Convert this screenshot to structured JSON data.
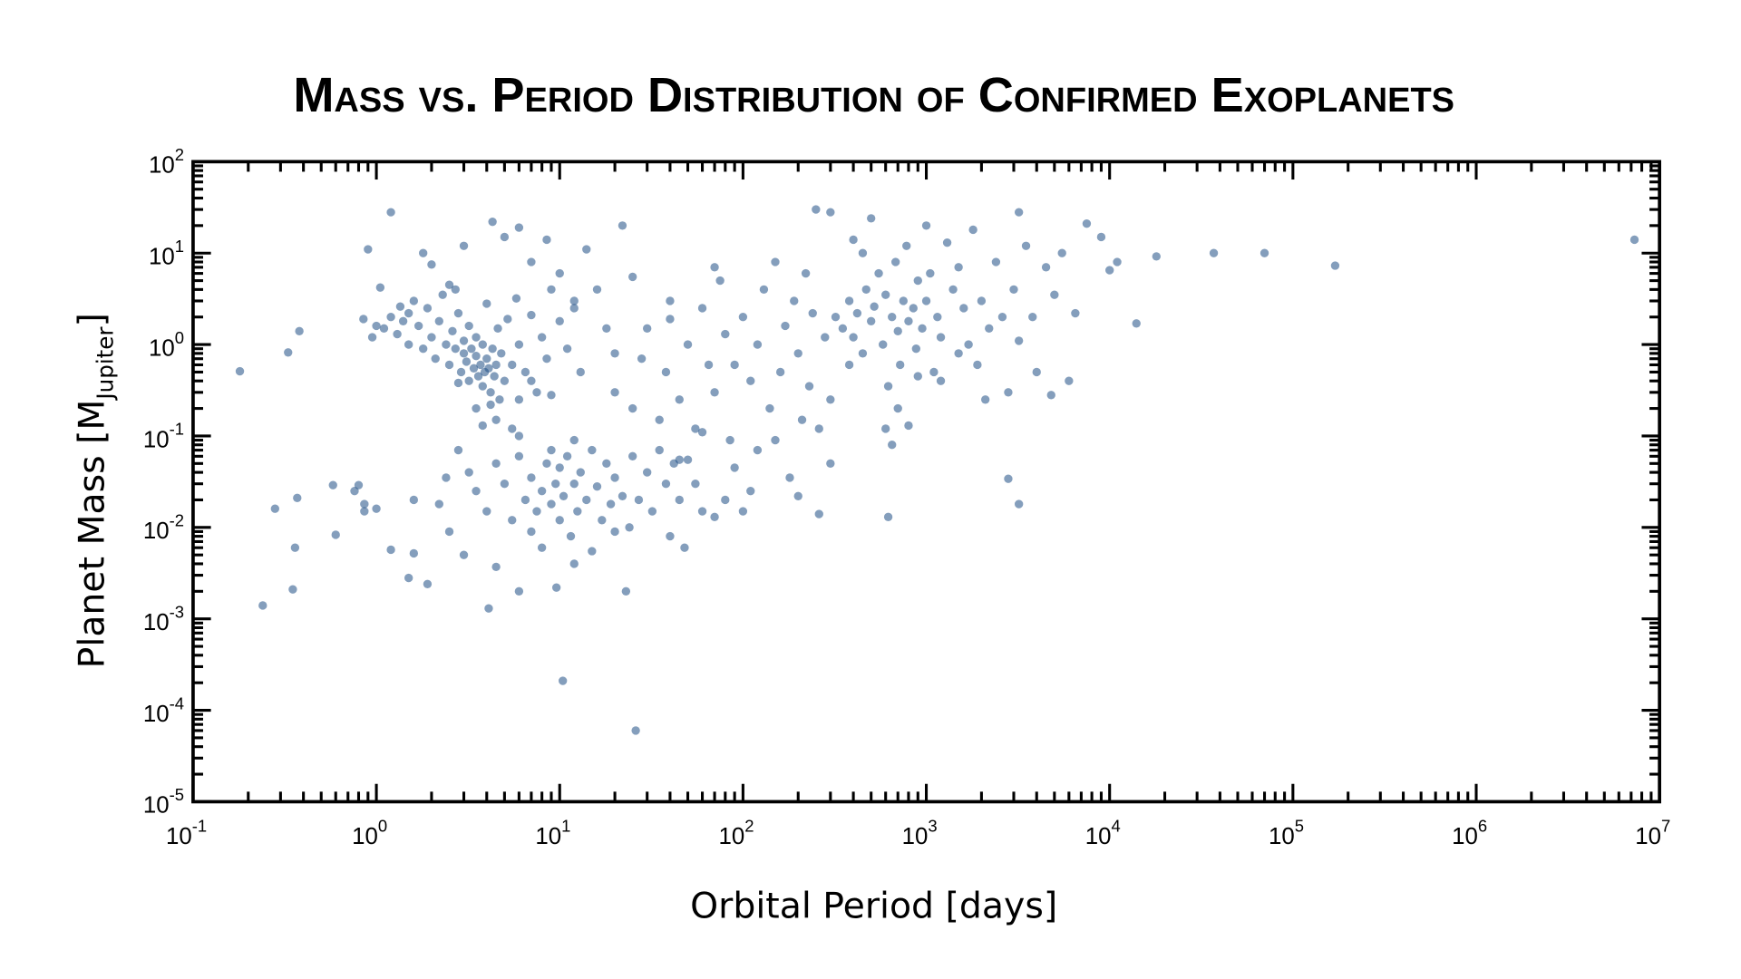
{
  "chart_data": {
    "type": "scatter",
    "title": "Mass vs. Period Distribution of Confirmed Exoplanets",
    "xlabel": "Orbital Period [days]",
    "ylabel_main": "Planet Mass [M",
    "ylabel_sub": "Jupiter",
    "ylabel_end": "]",
    "x_scale": "log",
    "y_scale": "log",
    "xlim": [
      0.1,
      10000000
    ],
    "ylim": [
      1e-05,
      100
    ],
    "grid": false,
    "marker_color": "#1f4e85",
    "x_ticks": [
      {
        "base": "10",
        "exp": "-1",
        "value": 0.1
      },
      {
        "base": "10",
        "exp": "0",
        "value": 1
      },
      {
        "base": "10",
        "exp": "1",
        "value": 10
      },
      {
        "base": "10",
        "exp": "2",
        "value": 100
      },
      {
        "base": "10",
        "exp": "3",
        "value": 1000
      },
      {
        "base": "10",
        "exp": "4",
        "value": 10000
      },
      {
        "base": "10",
        "exp": "5",
        "value": 100000
      },
      {
        "base": "10",
        "exp": "6",
        "value": 1000000
      },
      {
        "base": "10",
        "exp": "7",
        "value": 10000000
      }
    ],
    "y_ticks": [
      {
        "base": "10",
        "exp": "-5",
        "value": 1e-05
      },
      {
        "base": "10",
        "exp": "-4",
        "value": 0.0001
      },
      {
        "base": "10",
        "exp": "-3",
        "value": 0.001
      },
      {
        "base": "10",
        "exp": "-2",
        "value": 0.01
      },
      {
        "base": "10",
        "exp": "-1",
        "value": 0.1
      },
      {
        "base": "10",
        "exp": "0",
        "value": 1
      },
      {
        "base": "10",
        "exp": "1",
        "value": 10
      },
      {
        "base": "10",
        "exp": "2",
        "value": 100
      }
    ],
    "points": [
      [
        0.18,
        0.51
      ],
      [
        0.33,
        0.82
      ],
      [
        0.38,
        1.4
      ],
      [
        0.24,
        0.0014
      ],
      [
        0.28,
        0.016
      ],
      [
        0.37,
        0.021
      ],
      [
        0.36,
        0.006
      ],
      [
        0.35,
        0.0021
      ],
      [
        0.58,
        0.029
      ],
      [
        0.6,
        0.0083
      ],
      [
        0.76,
        0.025
      ],
      [
        0.8,
        0.029
      ],
      [
        0.86,
        0.018
      ],
      [
        0.86,
        0.015
      ],
      [
        1.0,
        0.016
      ],
      [
        1.2,
        0.0057
      ],
      [
        1.5,
        0.0028
      ],
      [
        1.6,
        0.0052
      ],
      [
        1.9,
        0.0024
      ],
      [
        4.1,
        0.0013
      ],
      [
        10.4,
        0.00021
      ],
      [
        26,
        6e-05
      ],
      [
        23,
        0.002
      ],
      [
        9.6,
        0.0022
      ],
      [
        6,
        0.002
      ],
      [
        7300000,
        14
      ],
      [
        170000,
        7.3
      ],
      [
        70000,
        10
      ],
      [
        37000,
        10
      ],
      [
        18000,
        9.2
      ],
      [
        14000,
        1.7
      ],
      [
        3200,
        28
      ],
      [
        2800,
        0.034
      ],
      [
        3200,
        0.018
      ],
      [
        620,
        0.013
      ],
      [
        1.2,
        28
      ],
      [
        4.3,
        22
      ],
      [
        260,
        0.014
      ],
      [
        1.1,
        1.5
      ],
      [
        1.2,
        2.0
      ],
      [
        1.3,
        1.3
      ],
      [
        1.35,
        2.6
      ],
      [
        1.4,
        1.8
      ],
      [
        1.5,
        2.2
      ],
      [
        1.5,
        1.0
      ],
      [
        1.6,
        3.0
      ],
      [
        1.7,
        1.6
      ],
      [
        1.8,
        0.9
      ],
      [
        1.9,
        2.5
      ],
      [
        2.0,
        1.2
      ],
      [
        2.1,
        0.7
      ],
      [
        2.2,
        1.8
      ],
      [
        2.3,
        3.5
      ],
      [
        2.4,
        1.0
      ],
      [
        2.5,
        0.6
      ],
      [
        2.5,
        4.5
      ],
      [
        2.6,
        1.4
      ],
      [
        2.7,
        0.9
      ],
      [
        2.8,
        2.2
      ],
      [
        2.9,
        0.5
      ],
      [
        3.0,
        0.8
      ],
      [
        3.0,
        1.1
      ],
      [
        3.1,
        0.65
      ],
      [
        3.2,
        1.6
      ],
      [
        3.2,
        0.4
      ],
      [
        3.3,
        0.9
      ],
      [
        3.4,
        0.55
      ],
      [
        3.5,
        1.2
      ],
      [
        3.5,
        0.75
      ],
      [
        3.6,
        0.45
      ],
      [
        3.7,
        0.6
      ],
      [
        3.8,
        1.0
      ],
      [
        3.8,
        0.35
      ],
      [
        3.9,
        0.5
      ],
      [
        4.0,
        0.7
      ],
      [
        4.0,
        2.8
      ],
      [
        4.1,
        0.55
      ],
      [
        4.2,
        0.3
      ],
      [
        4.3,
        0.9
      ],
      [
        4.4,
        0.45
      ],
      [
        4.5,
        0.6
      ],
      [
        4.6,
        1.5
      ],
      [
        4.7,
        0.25
      ],
      [
        4.8,
        0.8
      ],
      [
        5.0,
        0.4
      ],
      [
        5.2,
        1.9
      ],
      [
        5.5,
        0.6
      ],
      [
        5.8,
        3.2
      ],
      [
        6.0,
        1.0
      ],
      [
        6.5,
        0.5
      ],
      [
        7,
        2.1
      ],
      [
        7.5,
        0.3
      ],
      [
        8,
        1.2
      ],
      [
        8.5,
        0.7
      ],
      [
        9,
        4.0
      ],
      [
        10,
        1.8
      ],
      [
        11,
        0.9
      ],
      [
        12,
        2.5
      ],
      [
        13,
        0.5
      ],
      [
        3.0,
        12
      ],
      [
        2.7,
        4
      ],
      [
        1.8,
        10
      ],
      [
        2,
        7.5
      ],
      [
        5,
        15
      ],
      [
        6,
        19
      ],
      [
        7,
        8
      ],
      [
        8.5,
        14
      ],
      [
        10,
        6
      ],
      [
        12,
        3
      ],
      [
        14,
        11
      ],
      [
        16,
        4
      ],
      [
        18,
        1.5
      ],
      [
        20,
        0.8
      ],
      [
        22,
        20
      ],
      [
        25,
        5.5
      ],
      [
        1.05,
        4.2
      ],
      [
        0.85,
        1.9
      ],
      [
        0.95,
        1.2
      ],
      [
        1.0,
        1.6
      ],
      [
        0.9,
        11
      ],
      [
        3.5,
        0.2
      ],
      [
        4.5,
        0.15
      ],
      [
        5.5,
        0.12
      ],
      [
        3.8,
        0.13
      ],
      [
        6,
        0.25
      ],
      [
        7,
        0.4
      ],
      [
        9,
        0.28
      ],
      [
        4.2,
        0.22
      ],
      [
        2.8,
        0.38
      ],
      [
        2.8,
        0.07
      ],
      [
        3.2,
        0.04
      ],
      [
        3.5,
        0.025
      ],
      [
        4,
        0.015
      ],
      [
        4.5,
        0.05
      ],
      [
        4.5,
        0.0037
      ],
      [
        5,
        0.03
      ],
      [
        5.5,
        0.012
      ],
      [
        6,
        0.06
      ],
      [
        6.5,
        0.02
      ],
      [
        7,
        0.009
      ],
      [
        7,
        0.035
      ],
      [
        7.5,
        0.015
      ],
      [
        8,
        0.025
      ],
      [
        8.5,
        0.05
      ],
      [
        9,
        0.018
      ],
      [
        9.5,
        0.03
      ],
      [
        10,
        0.012
      ],
      [
        10,
        0.045
      ],
      [
        10.5,
        0.022
      ],
      [
        11,
        0.06
      ],
      [
        11.5,
        0.008
      ],
      [
        12,
        0.03
      ],
      [
        12.5,
        0.015
      ],
      [
        13,
        0.04
      ],
      [
        14,
        0.02
      ],
      [
        15,
        0.07
      ],
      [
        16,
        0.028
      ],
      [
        17,
        0.012
      ],
      [
        18,
        0.05
      ],
      [
        19,
        0.018
      ],
      [
        20,
        0.035
      ],
      [
        22,
        0.022
      ],
      [
        24,
        0.01
      ],
      [
        25,
        0.06
      ],
      [
        27,
        0.02
      ],
      [
        30,
        0.04
      ],
      [
        32,
        0.015
      ],
      [
        35,
        0.07
      ],
      [
        38,
        0.03
      ],
      [
        40,
        0.008
      ],
      [
        42,
        0.05
      ],
      [
        45,
        0.02
      ],
      [
        48,
        0.006
      ],
      [
        50,
        0.055
      ],
      [
        55,
        0.03
      ],
      [
        60,
        0.015
      ],
      [
        70,
        0.013
      ],
      [
        80,
        0.02
      ],
      [
        2.2,
        0.018
      ],
      [
        1.6,
        0.02
      ],
      [
        2.5,
        0.009
      ],
      [
        3,
        0.005
      ],
      [
        8,
        0.006
      ],
      [
        12,
        0.004
      ],
      [
        15,
        0.0055
      ],
      [
        20,
        0.009
      ],
      [
        2.4,
        0.035
      ],
      [
        6,
        0.1
      ],
      [
        12,
        0.09
      ],
      [
        9,
        0.07
      ],
      [
        20,
        0.3
      ],
      [
        25,
        0.2
      ],
      [
        28,
        0.7
      ],
      [
        30,
        1.5
      ],
      [
        35,
        0.15
      ],
      [
        38,
        0.5
      ],
      [
        40,
        3
      ],
      [
        45,
        0.25
      ],
      [
        50,
        1.0
      ],
      [
        55,
        0.12
      ],
      [
        60,
        2.5
      ],
      [
        65,
        0.6
      ],
      [
        70,
        0.3
      ],
      [
        75,
        5
      ],
      [
        80,
        1.3
      ],
      [
        85,
        0.09
      ],
      [
        90,
        0.6
      ],
      [
        100,
        2.0
      ],
      [
        110,
        0.4
      ],
      [
        120,
        1.0
      ],
      [
        120,
        0.07
      ],
      [
        130,
        4
      ],
      [
        140,
        0.2
      ],
      [
        150,
        8
      ],
      [
        160,
        0.5
      ],
      [
        170,
        1.6
      ],
      [
        180,
        0.035
      ],
      [
        190,
        3
      ],
      [
        200,
        0.8
      ],
      [
        210,
        0.15
      ],
      [
        220,
        6
      ],
      [
        230,
        0.35
      ],
      [
        240,
        2.2
      ],
      [
        260,
        0.12
      ],
      [
        280,
        1.2
      ],
      [
        300,
        0.05
      ],
      [
        300,
        0.25
      ],
      [
        90,
        0.045
      ],
      [
        150,
        0.09
      ],
      [
        110,
        0.025
      ],
      [
        200,
        0.022
      ],
      [
        60,
        0.11
      ],
      [
        45,
        0.055
      ],
      [
        100,
        0.015
      ],
      [
        70,
        7
      ],
      [
        40,
        1.9
      ],
      [
        250,
        30
      ],
      [
        300,
        28
      ],
      [
        320,
        2.0
      ],
      [
        350,
        1.5
      ],
      [
        380,
        3
      ],
      [
        400,
        1.2
      ],
      [
        420,
        2.2
      ],
      [
        450,
        0.8
      ],
      [
        470,
        4
      ],
      [
        500,
        1.8
      ],
      [
        520,
        2.6
      ],
      [
        550,
        6
      ],
      [
        580,
        1.0
      ],
      [
        600,
        3.5
      ],
      [
        620,
        0.35
      ],
      [
        650,
        2.0
      ],
      [
        680,
        8
      ],
      [
        700,
        1.4
      ],
      [
        720,
        0.6
      ],
      [
        750,
        3
      ],
      [
        780,
        12
      ],
      [
        800,
        1.8
      ],
      [
        850,
        2.5
      ],
      [
        880,
        0.9
      ],
      [
        900,
        5
      ],
      [
        950,
        1.5
      ],
      [
        1000,
        3
      ],
      [
        1050,
        6
      ],
      [
        1100,
        0.5
      ],
      [
        1150,
        2.0
      ],
      [
        1200,
        1.2
      ],
      [
        1300,
        13
      ],
      [
        1400,
        4
      ],
      [
        1500,
        0.8
      ],
      [
        1600,
        2.5
      ],
      [
        1700,
        1.0
      ],
      [
        1800,
        18
      ],
      [
        1900,
        0.6
      ],
      [
        2000,
        3
      ],
      [
        2200,
        1.5
      ],
      [
        2400,
        8
      ],
      [
        2600,
        2
      ],
      [
        2800,
        0.3
      ],
      [
        3000,
        4
      ],
      [
        3200,
        1.1
      ],
      [
        3500,
        12
      ],
      [
        3800,
        2
      ],
      [
        4000,
        0.5
      ],
      [
        4500,
        7
      ],
      [
        4800,
        0.28
      ],
      [
        5000,
        3.5
      ],
      [
        5500,
        10
      ],
      [
        6000,
        0.4
      ],
      [
        6500,
        2.2
      ],
      [
        7500,
        21
      ],
      [
        9000,
        15
      ],
      [
        10000,
        6.5
      ],
      [
        11000,
        8
      ],
      [
        400,
        14
      ],
      [
        500,
        24
      ],
      [
        600,
        0.12
      ],
      [
        650,
        0.08
      ],
      [
        800,
        0.13
      ],
      [
        380,
        0.6
      ],
      [
        450,
        10
      ],
      [
        1000,
        20
      ],
      [
        1200,
        0.4
      ],
      [
        2100,
        0.25
      ],
      [
        700,
        0.2
      ],
      [
        900,
        0.45
      ],
      [
        1500,
        7
      ]
    ]
  }
}
